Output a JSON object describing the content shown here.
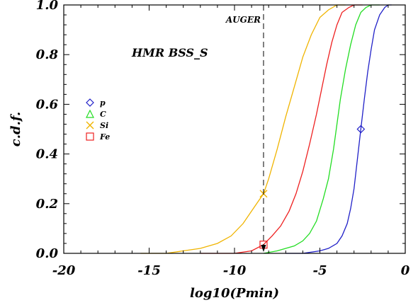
{
  "chart_data": {
    "type": "line",
    "title": "",
    "xlabel": "log10(Pmin)",
    "ylabel": "c.d.f.",
    "xlim": [
      -20,
      0
    ],
    "ylim": [
      0,
      1.0
    ],
    "x_ticks": [
      -20,
      -15,
      -10,
      -5,
      0
    ],
    "y_ticks": [
      0.0,
      0.2,
      0.4,
      0.6,
      0.8,
      1.0
    ],
    "x_tick_labels": [
      "-20",
      "-15",
      "-10",
      "-5",
      "0"
    ],
    "y_tick_labels": [
      "0.0",
      "0.2",
      "0.4",
      "0.6",
      "0.8",
      "1.0"
    ],
    "legend_position": "left-middle",
    "annotations": {
      "model_label": "HMR BSS_S",
      "auger_label": "AUGER",
      "auger_x": -8.3
    },
    "series": [
      {
        "name": "p",
        "color": "#2020c8",
        "marker": "diamond",
        "marker_point": [
          -2.6,
          0.5
        ],
        "x": [
          -7.0,
          -6.0,
          -5.0,
          -4.5,
          -4.0,
          -3.7,
          -3.4,
          -3.2,
          -3.0,
          -2.8,
          -2.6,
          -2.4,
          -2.2,
          -2.0,
          -1.8,
          -1.5,
          -1.2,
          -1.0,
          -0.8
        ],
        "y": [
          0.0,
          0.0,
          0.01,
          0.02,
          0.04,
          0.07,
          0.12,
          0.18,
          0.26,
          0.38,
          0.5,
          0.62,
          0.73,
          0.82,
          0.9,
          0.96,
          0.99,
          1.0,
          1.0
        ]
      },
      {
        "name": "C",
        "color": "#22dd22",
        "marker": "triangle",
        "x": [
          -8.3,
          -7.5,
          -7.0,
          -6.5,
          -6.0,
          -5.6,
          -5.2,
          -4.8,
          -4.5,
          -4.2,
          -4.0,
          -3.8,
          -3.5,
          -3.2,
          -2.9,
          -2.6,
          -2.3,
          -2.0,
          -1.5
        ],
        "y": [
          0.0,
          0.01,
          0.02,
          0.03,
          0.05,
          0.08,
          0.13,
          0.22,
          0.3,
          0.42,
          0.52,
          0.62,
          0.74,
          0.84,
          0.92,
          0.97,
          0.99,
          1.0,
          1.0
        ]
      },
      {
        "name": "Si",
        "color": "#f0b400",
        "marker": "x",
        "marker_point": [
          -8.3,
          0.24
        ],
        "x": [
          -15.5,
          -14,
          -13,
          -12,
          -11,
          -10.2,
          -9.5,
          -9.0,
          -8.6,
          -8.3,
          -8.0,
          -7.5,
          -7.0,
          -6.5,
          -6.0,
          -5.5,
          -5.0,
          -4.5,
          -4.0,
          -3.5
        ],
        "y": [
          0.0,
          0.0,
          0.01,
          0.02,
          0.04,
          0.07,
          0.12,
          0.17,
          0.21,
          0.24,
          0.3,
          0.42,
          0.55,
          0.67,
          0.79,
          0.88,
          0.95,
          0.98,
          1.0,
          1.0
        ]
      },
      {
        "name": "Fe",
        "color": "#ee2020",
        "marker": "square",
        "marker_point": [
          -8.3,
          0.035
        ],
        "x": [
          -12,
          -10,
          -9.0,
          -8.3,
          -7.8,
          -7.3,
          -6.8,
          -6.4,
          -6.0,
          -5.6,
          -5.2,
          -4.9,
          -4.6,
          -4.3,
          -4.0,
          -3.7,
          -3.3,
          -3.0,
          -2.5
        ],
        "y": [
          0.0,
          0.0,
          0.01,
          0.035,
          0.07,
          0.11,
          0.17,
          0.24,
          0.33,
          0.44,
          0.56,
          0.66,
          0.76,
          0.85,
          0.92,
          0.97,
          0.99,
          1.0,
          1.0
        ]
      }
    ]
  }
}
